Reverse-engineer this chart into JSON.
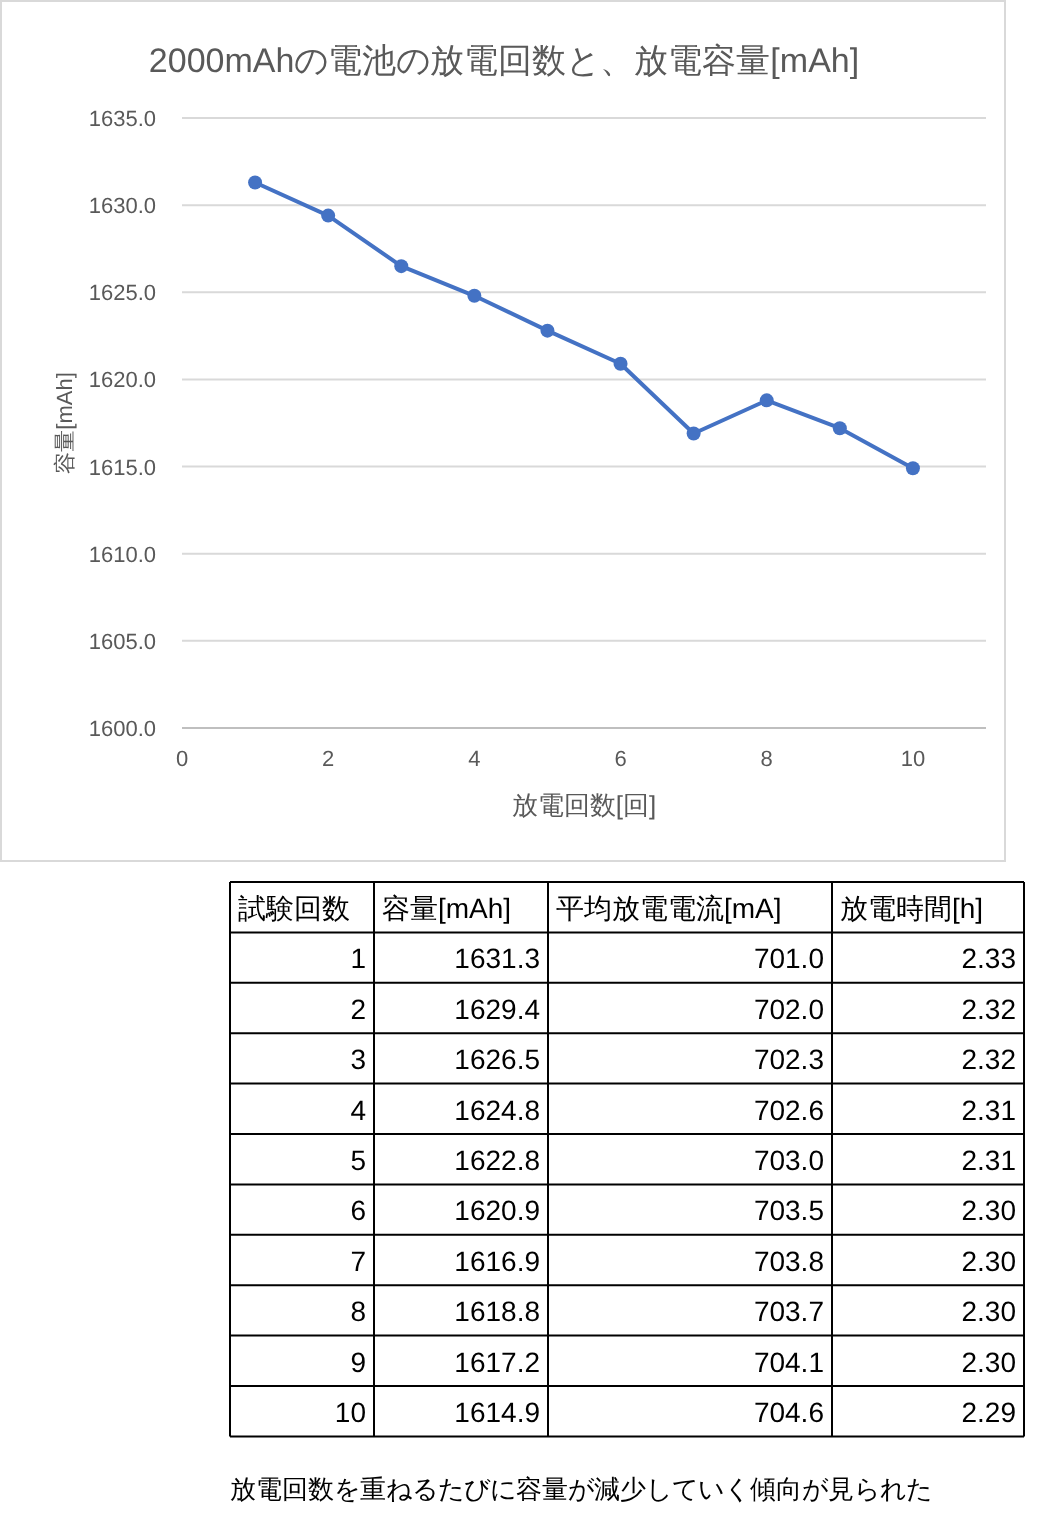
{
  "chart_data": [
    {
      "type": "line",
      "title": "2000mAhの電池の放電回数と、放電容量[mAh]",
      "xlabel": "放電回数[回]",
      "ylabel": "容量[mAh]",
      "x": [
        1,
        2,
        3,
        4,
        5,
        6,
        7,
        8,
        9,
        10
      ],
      "series": [
        {
          "color": "#4472c4",
          "values": [
            1631.3,
            1629.4,
            1626.5,
            1624.8,
            1622.8,
            1620.9,
            1616.9,
            1618.8,
            1617.2,
            1614.9
          ]
        }
      ],
      "xlim": [
        0,
        11
      ],
      "xticks": [
        0,
        2,
        4,
        6,
        8,
        10
      ],
      "ylim": [
        1600,
        1635
      ],
      "yticks": [
        {
          "value": 1600,
          "label": "1600.0"
        },
        {
          "value": 1605,
          "label": "1605.0"
        },
        {
          "value": 1610,
          "label": "1610.0"
        },
        {
          "value": 1615,
          "label": "1615.0"
        },
        {
          "value": 1620,
          "label": "1620.0"
        },
        {
          "value": 1625,
          "label": "1625.0"
        },
        {
          "value": 1630,
          "label": "1630.0"
        },
        {
          "value": 1635,
          "label": "1635.0"
        }
      ],
      "grid": "y",
      "marker": "circle",
      "line_style": "solid"
    },
    {
      "type": "heatmap",
      "ylabel": "試験回数",
      "categories": [
        "容量[mAh]",
        "平均放電電流[mA]",
        "放電時間[h]"
      ],
      "y_categories": [
        "1",
        "2",
        "3",
        "4",
        "5",
        "6",
        "7",
        "8",
        "9",
        "10"
      ],
      "cells": [
        [
          1631.3,
          701.0,
          2.33
        ],
        [
          1629.4,
          702.0,
          2.32
        ],
        [
          1626.5,
          702.3,
          2.32
        ],
        [
          1624.8,
          702.6,
          2.31
        ],
        [
          1622.8,
          703.0,
          2.31
        ],
        [
          1620.9,
          703.5,
          2.3
        ],
        [
          1616.9,
          703.8,
          2.3
        ],
        [
          1618.8,
          703.7,
          2.3
        ],
        [
          1617.2,
          704.1,
          2.3
        ],
        [
          1614.9,
          704.6,
          2.29
        ]
      ],
      "cell_labels": [
        [
          "1631.3",
          "701.0",
          "2.33"
        ],
        [
          "1629.4",
          "702.0",
          "2.32"
        ],
        [
          "1626.5",
          "702.3",
          "2.32"
        ],
        [
          "1624.8",
          "702.6",
          "2.31"
        ],
        [
          "1622.8",
          "703.0",
          "2.31"
        ],
        [
          "1620.9",
          "703.5",
          "2.30"
        ],
        [
          "1616.9",
          "703.8",
          "2.30"
        ],
        [
          "1618.8",
          "703.7",
          "2.30"
        ],
        [
          "1617.2",
          "704.1",
          "2.30"
        ],
        [
          "1614.9",
          "704.6",
          "2.29"
        ]
      ],
      "annotations": [
        "放電回数を重ねるたびに容量が減少していく傾向が見られた"
      ]
    }
  ]
}
